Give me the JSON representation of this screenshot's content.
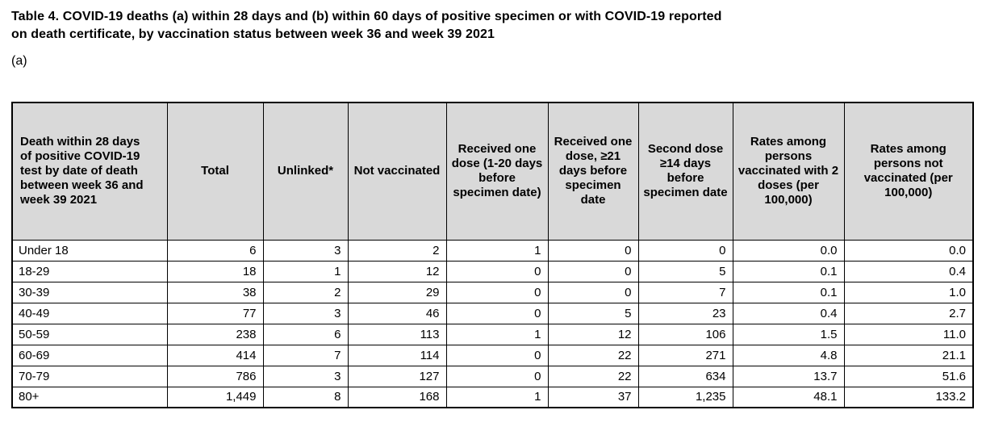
{
  "page": {
    "title_lines": [
      "Table 4. COVID-19 deaths (a) within 28 days and (b) within 60 days of positive specimen or with COVID-19 reported",
      "on death certificate, by vaccination status between week 36 and week 39 2021"
    ],
    "section_label": "(a)"
  },
  "colors": {
    "header_bg": "#d9d9d9",
    "border": "#000000",
    "text": "#000000",
    "page_bg": "#ffffff"
  },
  "table": {
    "columns": [
      {
        "label": "Death within 28 days of positive COVID-19 test by date of death between week 36 and week 39 2021"
      },
      {
        "label": "Total"
      },
      {
        "label": "Unlinked*"
      },
      {
        "label": "Not vaccinated"
      },
      {
        "label": "Received one dose (1-20 days before specimen date)"
      },
      {
        "label": "Received one dose, ≥21 days before specimen date"
      },
      {
        "label": "Second dose ≥14 days before specimen date"
      },
      {
        "label": "Rates among persons vaccinated with 2 doses (per 100,000)"
      },
      {
        "label": "Rates among persons not vaccinated (per 100,000)"
      }
    ],
    "rows": [
      {
        "age": "Under 18",
        "values": [
          "6",
          "3",
          "2",
          "1",
          "0",
          "0",
          "0.0",
          "0.0"
        ]
      },
      {
        "age": "18-29",
        "values": [
          "18",
          "1",
          "12",
          "0",
          "0",
          "5",
          "0.1",
          "0.4"
        ]
      },
      {
        "age": "30-39",
        "values": [
          "38",
          "2",
          "29",
          "0",
          "0",
          "7",
          "0.1",
          "1.0"
        ]
      },
      {
        "age": "40-49",
        "values": [
          "77",
          "3",
          "46",
          "0",
          "5",
          "23",
          "0.4",
          "2.7"
        ]
      },
      {
        "age": "50-59",
        "values": [
          "238",
          "6",
          "113",
          "1",
          "12",
          "106",
          "1.5",
          "11.0"
        ]
      },
      {
        "age": "60-69",
        "values": [
          "414",
          "7",
          "114",
          "0",
          "22",
          "271",
          "4.8",
          "21.1"
        ]
      },
      {
        "age": "70-79",
        "values": [
          "786",
          "3",
          "127",
          "0",
          "22",
          "634",
          "13.7",
          "51.6"
        ]
      },
      {
        "age": "80+",
        "values": [
          "1,449",
          "8",
          "168",
          "1",
          "37",
          "1,235",
          "48.1",
          "133.2"
        ]
      }
    ]
  }
}
